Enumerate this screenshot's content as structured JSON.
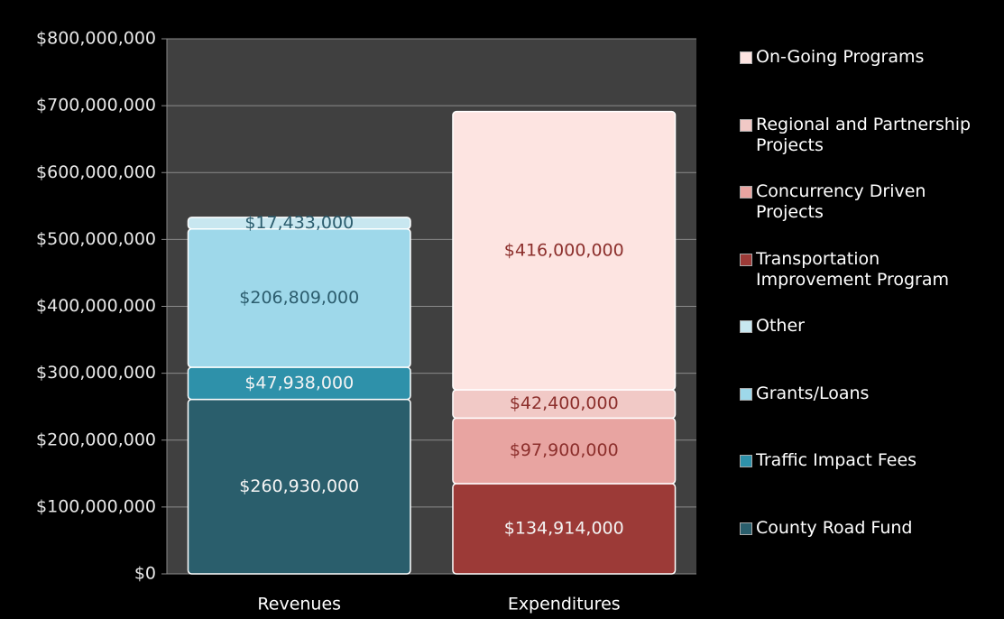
{
  "chart_data": {
    "type": "stacked_bar",
    "categories": [
      "Revenues",
      "Expenditures"
    ],
    "series": [
      {
        "name": "County Road Fund",
        "color": "#2a5e6c",
        "values": [
          260930000,
          null
        ],
        "value_labels": [
          "$260,930,000",
          null
        ]
      },
      {
        "name": "Traffic Impact Fees",
        "color": "#2e91aa",
        "values": [
          47938000,
          null
        ],
        "value_labels": [
          "$47,938,000",
          null
        ]
      },
      {
        "name": "Grants/Loans",
        "color": "#9ed8ea",
        "values": [
          206809000,
          null
        ],
        "value_labels": [
          "$206,809,000",
          null
        ]
      },
      {
        "name": "Other",
        "color": "#c8e7f0",
        "values": [
          17433000,
          null
        ],
        "value_labels": [
          "$17,433,000",
          null
        ]
      },
      {
        "name": "Transportation Improvement Program",
        "color": "#9c3a37",
        "values": [
          null,
          134914000
        ],
        "value_labels": [
          null,
          "$134,914,000"
        ]
      },
      {
        "name": "Concurrency Driven Projects",
        "color": "#e8a4a1",
        "values": [
          null,
          97900000
        ],
        "value_labels": [
          null,
          "$97,900,000"
        ]
      },
      {
        "name": "Regional and Partnership Projects",
        "color": "#f1c9c6",
        "values": [
          null,
          42400000
        ],
        "value_labels": [
          null,
          "$42,400,000"
        ]
      },
      {
        "name": "On-Going Programs",
        "color": "#fde4e1",
        "values": [
          null,
          416000000
        ],
        "value_labels": [
          null,
          "$416,000,000"
        ]
      }
    ],
    "ylim": [
      0,
      800000000
    ],
    "yticks": [
      {
        "value": 0,
        "label": "$0"
      },
      {
        "value": 100000000,
        "label": "$100,000,000"
      },
      {
        "value": 200000000,
        "label": "$200,000,000"
      },
      {
        "value": 300000000,
        "label": "$300,000,000"
      },
      {
        "value": 400000000,
        "label": "$400,000,000"
      },
      {
        "value": 500000000,
        "label": "$500,000,000"
      },
      {
        "value": 600000000,
        "label": "$600,000,000"
      },
      {
        "value": 700000000,
        "label": "$700,000,000"
      },
      {
        "value": 800000000,
        "label": "$800,000,000"
      }
    ],
    "grid": true,
    "legend": "right"
  }
}
